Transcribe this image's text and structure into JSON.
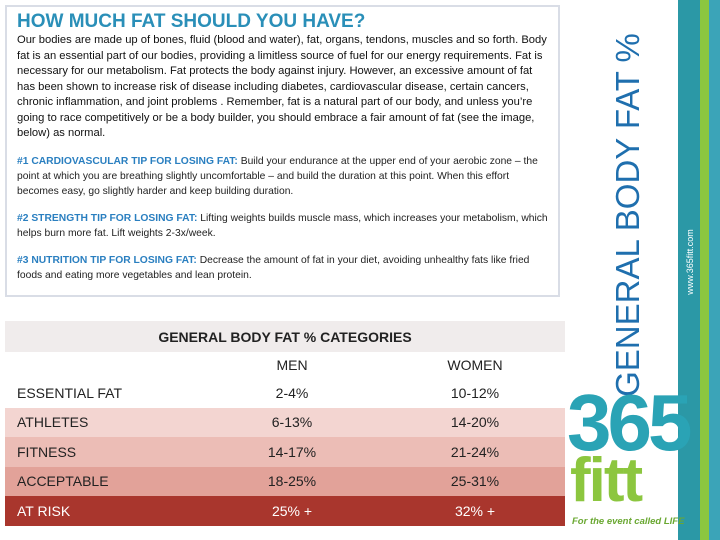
{
  "header": {
    "title": "HOW MUCH FAT SHOULD YOU HAVE?"
  },
  "intro": "Our bodies are made up of bones, fluid (blood and water), fat, organs, tendons, muscles and so forth. Body fat is an essential part of our bodies, providing a limitless source of fuel for our energy requirements.  Fat is necessary for our metabolism.  Fat protects the body against injury.  However, an excessive amount of fat has been shown to increase risk of disease including diabetes, cardiovascular disease, certain cancers, chronic inflammation, and joint problems . Remember, fat is a natural part of our body, and unless you’re going to race competitively or be a body builder, you should embrace a fair amount of fat (see the image, below) as normal.",
  "tips": [
    {
      "label": "#1 CARDIOVASCULAR TIP FOR LOSING FAT:",
      "text": "Build your endurance at the upper end of your aerobic zone – the point at which you are breathing slightly uncomfortable – and build the duration at this point.  When this effort becomes easy, go slightly harder and keep building duration."
    },
    {
      "label": "#2 STRENGTH TIP FOR LOSING FAT:",
      "text": "Lifting weights builds muscle mass, which increases your metabolism, which helps burn more fat.  Lift weights 2-3x/week."
    },
    {
      "label": "#3 NUTRITION TIP FOR LOSING FAT:",
      "text": "Decrease the amount of fat in your diet, avoiding unhealthy fats like fried foods and eating more vegetables and lean protein."
    }
  ],
  "table": {
    "title": "GENERAL BODY FAT % CATEGORIES",
    "columns": [
      "MEN",
      "WOMEN"
    ],
    "rows": [
      [
        "ESSENTIAL FAT",
        "2-4%",
        "10-12%"
      ],
      [
        "ATHLETES",
        "6-13%",
        "14-20%"
      ],
      [
        "FITNESS",
        "14-17%",
        "21-24%"
      ],
      [
        "ACCEPTABLE",
        "18-25%",
        "25-31%"
      ],
      [
        "AT RISK",
        "25% +",
        "32% +"
      ]
    ]
  },
  "sidebar": {
    "title": "GENERAL BODY FAT %",
    "url": "www.365fitt.com"
  },
  "logo": {
    "number": "365",
    "word": "fitt",
    "tagline": "For the event called LIFE"
  }
}
